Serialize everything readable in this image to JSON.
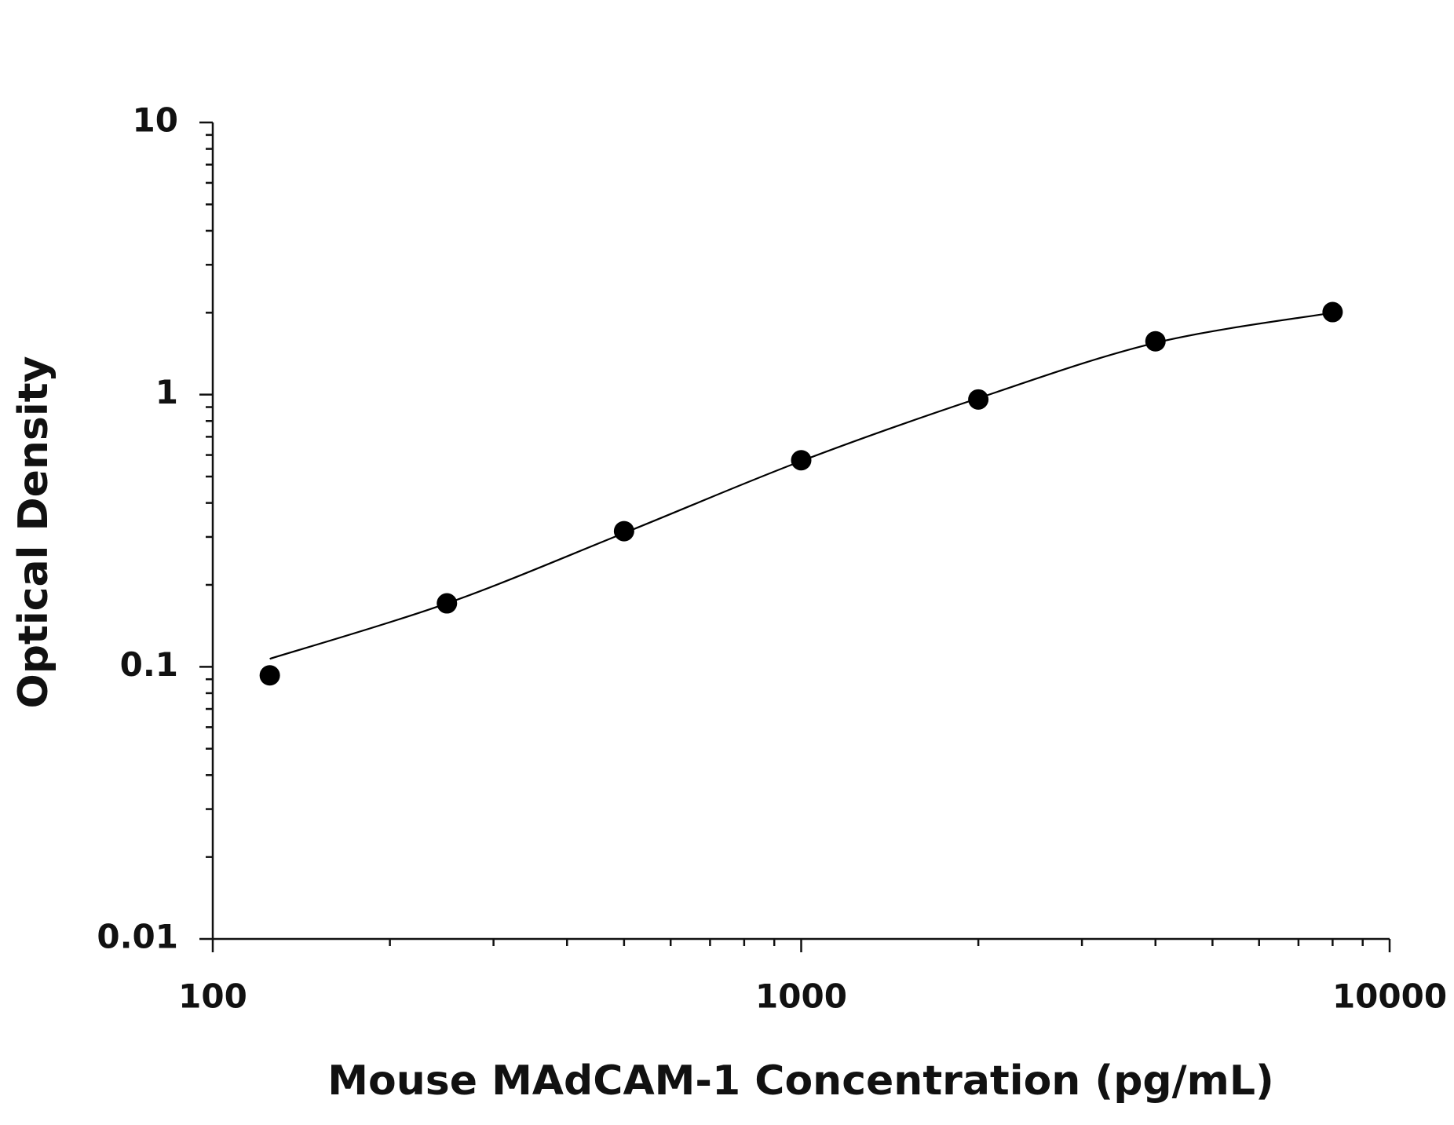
{
  "chart_data": {
    "type": "scatter",
    "x_label": "Mouse MAdCAM-1 Concentration (pg/mL)",
    "y_label": "Optical Density",
    "x_scale": "log",
    "y_scale": "log",
    "xlim": [
      100,
      10000
    ],
    "ylim": [
      0.01,
      10
    ],
    "xticks": [
      100,
      1000,
      10000
    ],
    "yticks": [
      0.01,
      0.1,
      1,
      10
    ],
    "grid": false,
    "series": [
      {
        "color": "#000000",
        "mode": "markers",
        "x": [
          125,
          250,
          500,
          1000,
          2000,
          4000,
          8000
        ],
        "values": [
          0.093,
          0.171,
          0.315,
          0.574,
          0.96,
          1.57,
          2.01
        ]
      },
      {
        "color": "#000000",
        "mode": "curve",
        "x": [
          125,
          250,
          500,
          1000,
          2000,
          4000,
          8000
        ],
        "values": [
          0.107,
          0.171,
          0.31,
          0.57,
          0.97,
          1.55,
          2.0
        ]
      }
    ]
  }
}
